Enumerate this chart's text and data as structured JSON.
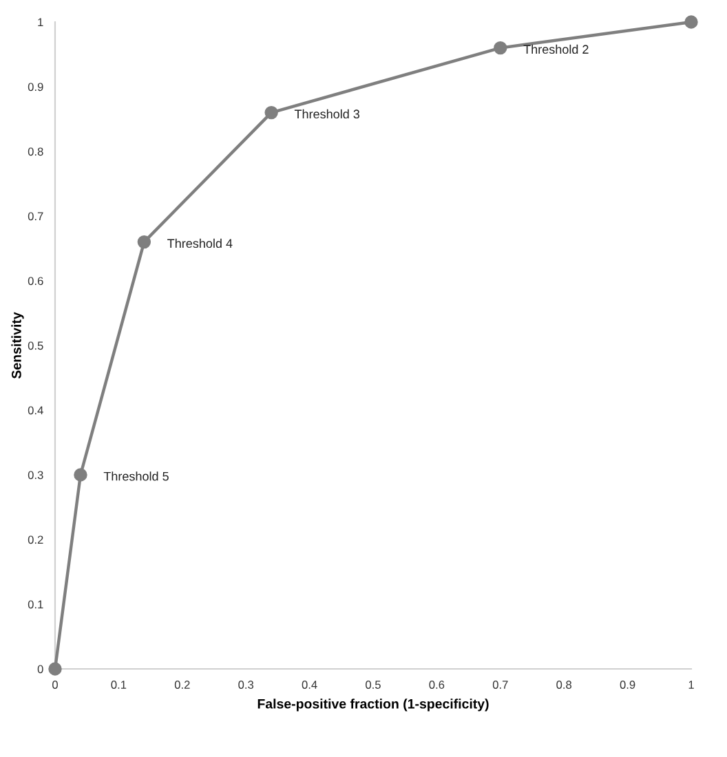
{
  "chart_data": {
    "type": "line",
    "xlabel": "False-positive fraction (1-specificity)",
    "ylabel": "Sensitivity",
    "x": [
      0,
      0.04,
      0.14,
      0.34,
      0.7,
      1
    ],
    "series": [
      {
        "color": "#7f7f7f",
        "values": [
          0,
          0.3,
          0.66,
          0.86,
          0.96,
          1
        ]
      }
    ],
    "xlim": [
      0,
      1
    ],
    "ylim": [
      0,
      1
    ],
    "xticks": [
      0,
      0.1,
      0.2,
      0.3,
      0.4,
      0.5,
      0.6,
      0.7,
      0.8,
      0.9,
      1
    ],
    "yticks": [
      0,
      0.1,
      0.2,
      0.3,
      0.4,
      0.5,
      0.6,
      0.7,
      0.8,
      0.9,
      1
    ],
    "grid": false,
    "legend": false,
    "marker": "circle",
    "line_style": "solid",
    "annotations": [
      {
        "text": "Threshold 5",
        "x": 0.04,
        "y": 0.3
      },
      {
        "text": "Threshold 4",
        "x": 0.14,
        "y": 0.66
      },
      {
        "text": "Threshold 3",
        "x": 0.34,
        "y": 0.86
      },
      {
        "text": "Threshold 2",
        "x": 0.7,
        "y": 0.96
      }
    ]
  }
}
